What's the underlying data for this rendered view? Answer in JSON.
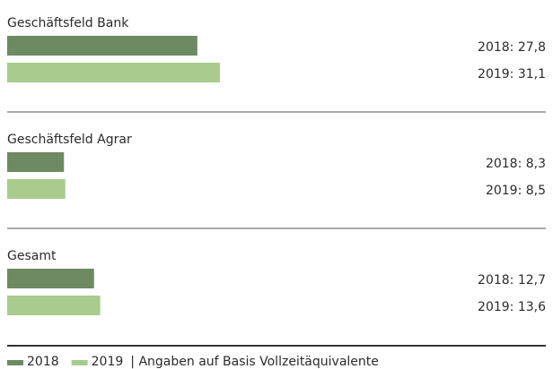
{
  "chart_data": {
    "type": "bar",
    "categories": [
      "Geschäftsfeld Bank",
      "Geschäftsfeld Agrar",
      "Gesamt"
    ],
    "series": [
      {
        "name": "2018",
        "color": "#6e8a62",
        "values": [
          27.8,
          8.3,
          12.7
        ],
        "value_labels": [
          "2018: 27,8",
          "2018: 8,3",
          "2018: 12,7"
        ]
      },
      {
        "name": "2019",
        "color": "#a9cc8e",
        "values": [
          31.1,
          8.5,
          13.6
        ],
        "value_labels": [
          "2019: 31,1",
          "2019: 8,5",
          "2019: 13,6"
        ]
      }
    ],
    "note": "| Angaben auf Basis Vollzeitäquivalente"
  }
}
